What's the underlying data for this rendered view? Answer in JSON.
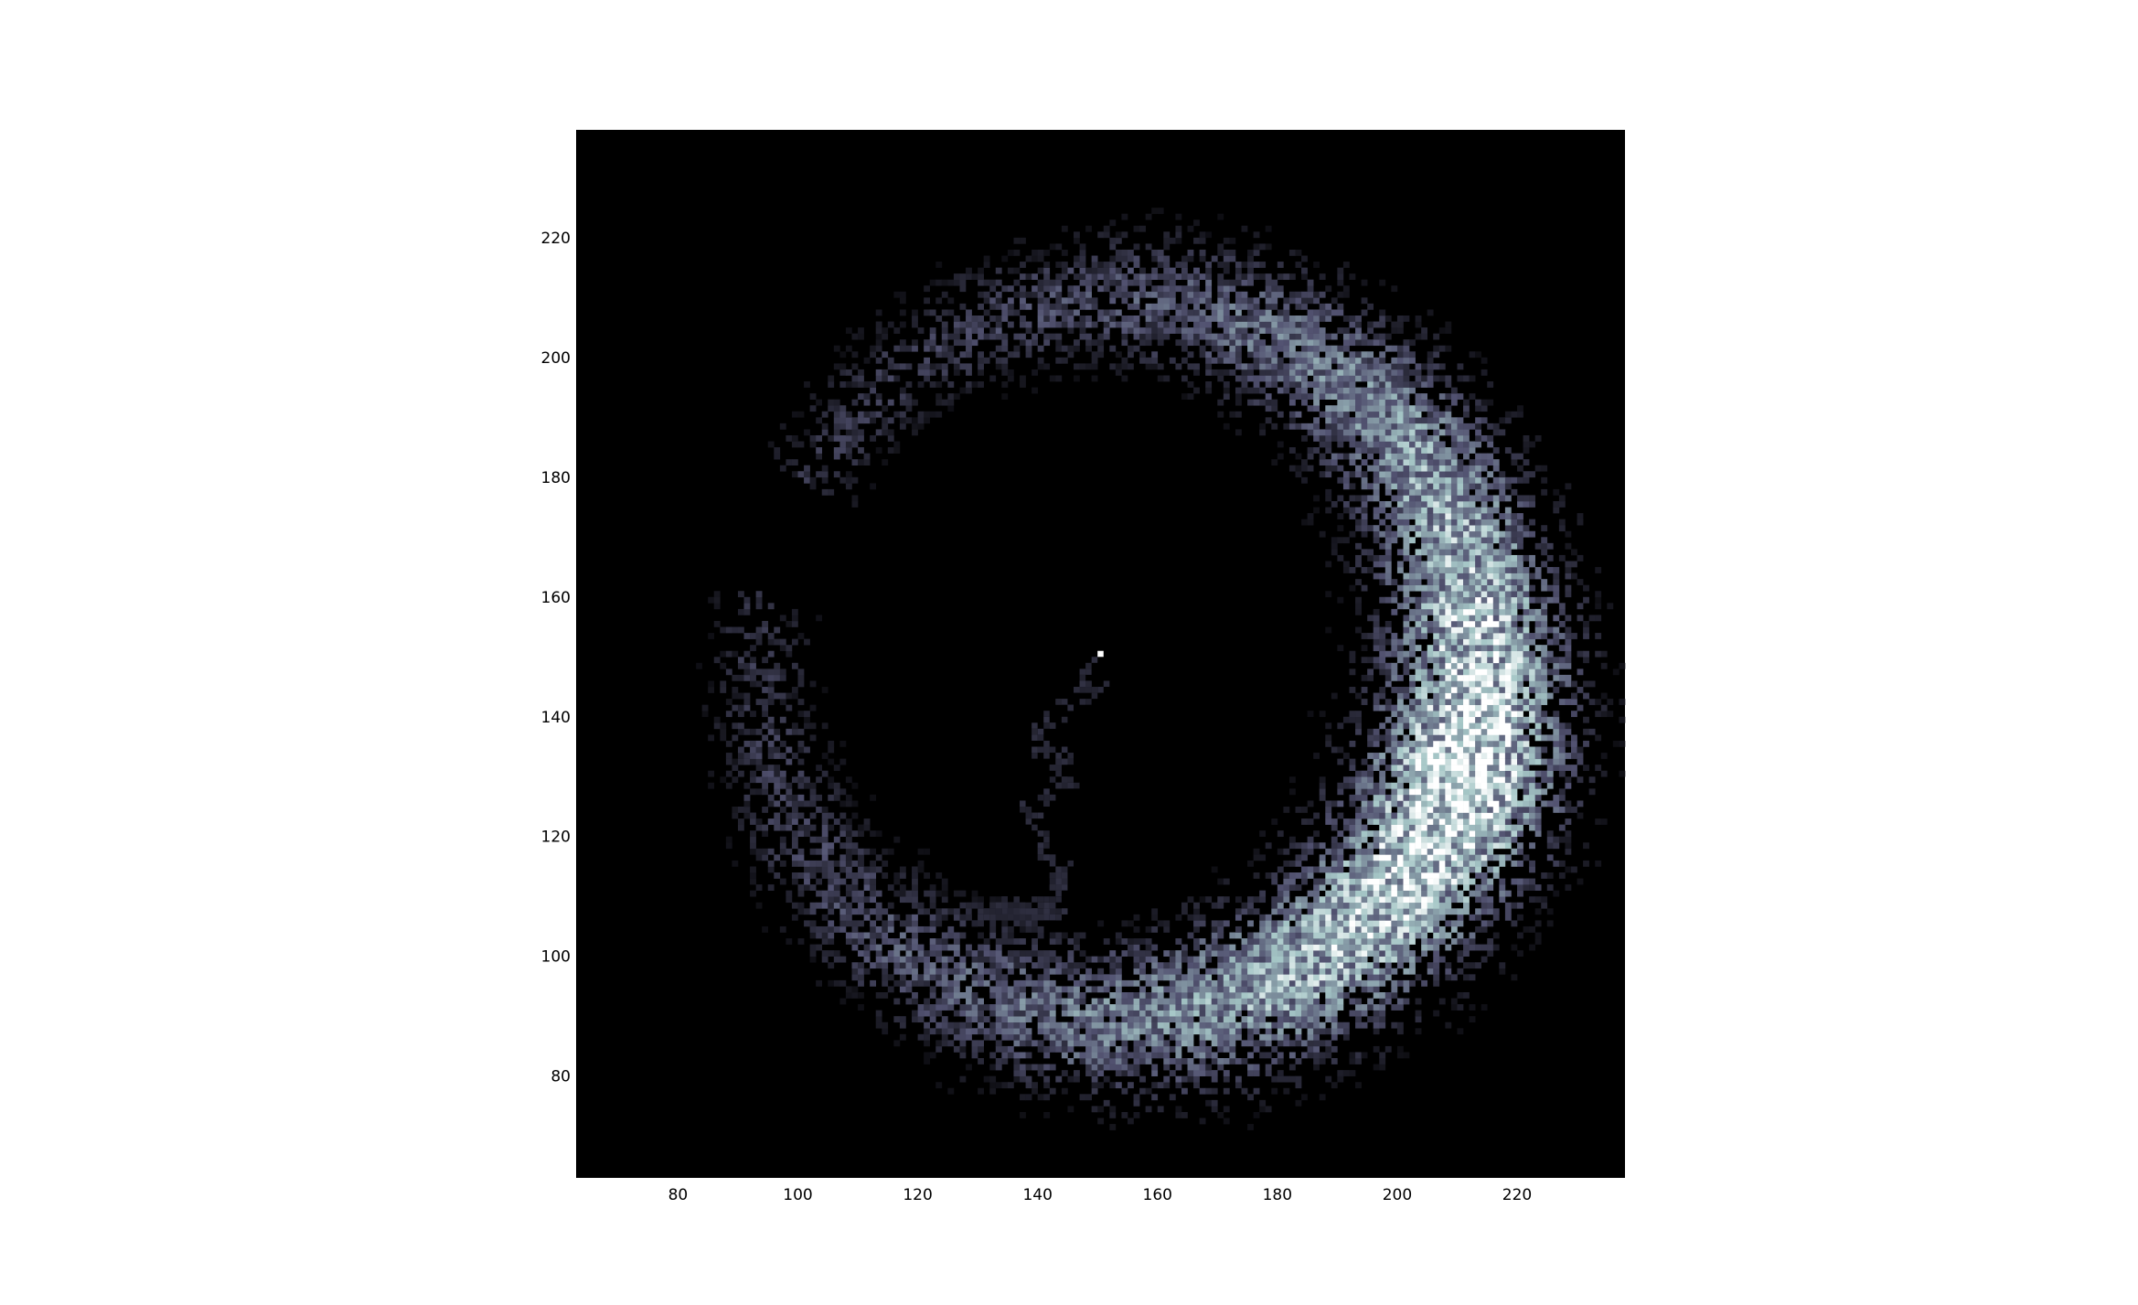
{
  "chart_data": {
    "type": "heatmap",
    "title": "",
    "xlabel": "",
    "ylabel": "",
    "xlim": [
      63,
      238
    ],
    "ylim": [
      63,
      238
    ],
    "x_ticks": [
      80,
      100,
      120,
      140,
      160,
      180,
      200,
      220
    ],
    "y_ticks": [
      80,
      100,
      120,
      140,
      160,
      180,
      200,
      220
    ],
    "grid": false,
    "legend": "none",
    "colormap": "bone",
    "background_color": "#000000",
    "description_of_density": {
      "bright_marker_point": [
        150,
        150
      ],
      "ring_center": [
        150,
        150
      ],
      "ring_radius_range": [
        45,
        82
      ]
    }
  }
}
